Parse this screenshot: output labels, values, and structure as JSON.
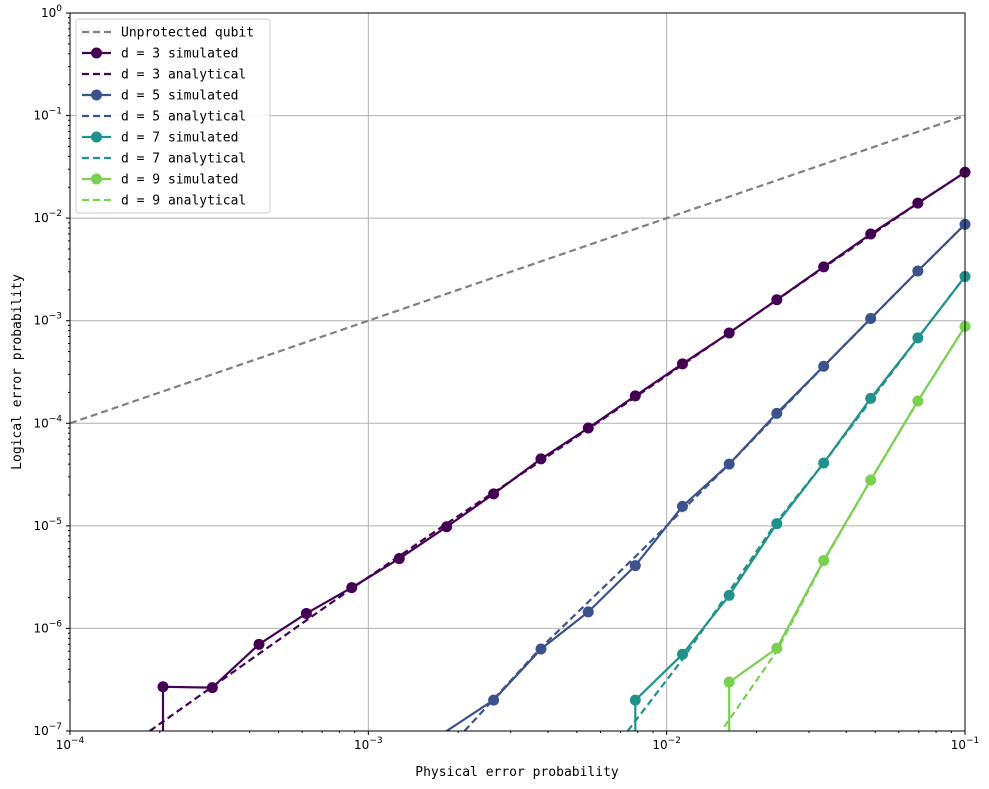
{
  "chart_data": {
    "type": "line",
    "title": "",
    "xlabel": "Physical error probability",
    "ylabel": "Logical error probability",
    "xscale": "log",
    "yscale": "log",
    "xlim": [
      0.0001,
      0.1
    ],
    "ylim": [
      1e-07,
      1
    ],
    "grid": true,
    "legend_position": "upper-left",
    "x_ticks": [
      {
        "base": "10",
        "exp": "−4"
      },
      {
        "base": "10",
        "exp": "−3"
      },
      {
        "base": "10",
        "exp": "−2"
      },
      {
        "base": "10",
        "exp": "−1"
      }
    ],
    "y_ticks": [
      {
        "base": "10",
        "exp": "−7"
      },
      {
        "base": "10",
        "exp": "−6"
      },
      {
        "base": "10",
        "exp": "−5"
      },
      {
        "base": "10",
        "exp": "−4"
      },
      {
        "base": "10",
        "exp": "−3"
      },
      {
        "base": "10",
        "exp": "−2"
      },
      {
        "base": "10",
        "exp": "−1"
      },
      {
        "base": "10",
        "exp": "0"
      }
    ],
    "series": [
      {
        "name": "Unprotected qubit",
        "style": "dashed",
        "markers": false,
        "color": "#808080",
        "x": [
          0.0001,
          0.1
        ],
        "y": [
          0.0001,
          0.1
        ]
      },
      {
        "name": "d = 3 simulated",
        "style": "solid",
        "markers": true,
        "color": "#440154",
        "x": [
          0.000205,
          0.000205,
          0.0003,
          0.00043,
          0.00062,
          0.00088,
          0.00127,
          0.00183,
          0.00263,
          0.00379,
          0.00546,
          0.00785,
          0.0113,
          0.0162,
          0.0234,
          0.0336,
          0.0483,
          0.0695,
          0.1
        ],
        "y": [
          1e-07,
          2.7e-07,
          2.65e-07,
          7e-07,
          1.4e-06,
          2.5e-06,
          4.8e-06,
          9.8e-06,
          2.05e-05,
          4.5e-05,
          9e-05,
          0.000185,
          0.00038,
          0.00076,
          0.0016,
          0.00335,
          0.007,
          0.014,
          0.028
        ]
      },
      {
        "name": "d = 3 analytical",
        "style": "dashed",
        "markers": false,
        "color": "#440154",
        "x": [
          0.000185,
          0.00062,
          0.00088,
          0.00183,
          0.00379,
          0.00785,
          0.0162,
          0.0336,
          0.0695,
          0.1
        ],
        "y": [
          1e-07,
          1.2e-06,
          2.45e-06,
          1.05e-05,
          4.3e-05,
          0.00018,
          0.00076,
          0.0033,
          0.014,
          0.028
        ]
      },
      {
        "name": "d = 5 simulated",
        "style": "solid",
        "markers": true,
        "color": "#3b528b",
        "x": [
          0.00183,
          0.00263,
          0.00379,
          0.00546,
          0.00785,
          0.0113,
          0.0162,
          0.0234,
          0.0336,
          0.0483,
          0.0695,
          0.1
        ],
        "y": [
          1e-07,
          2e-07,
          6.3e-07,
          1.45e-06,
          4.1e-06,
          1.55e-05,
          4e-05,
          0.000125,
          0.00036,
          0.00105,
          0.00305,
          0.0087
        ]
      },
      {
        "name": "d = 5 analytical",
        "style": "dashed",
        "markers": false,
        "color": "#3b528b",
        "x": [
          0.0021,
          0.00379,
          0.00785,
          0.0162,
          0.0336,
          0.0695,
          0.1
        ],
        "y": [
          1e-07,
          6.5e-07,
          5e-06,
          4e-05,
          0.00036,
          0.00305,
          0.0087
        ]
      },
      {
        "name": "d = 7 simulated",
        "style": "solid",
        "markers": true,
        "color": "#21918c",
        "x": [
          0.00785,
          0.00785,
          0.0113,
          0.0162,
          0.0234,
          0.0336,
          0.0483,
          0.0695,
          0.1
        ],
        "y": [
          1e-07,
          2e-07,
          5.6e-07,
          2.1e-06,
          1.05e-05,
          4.1e-05,
          0.000175,
          0.00068,
          0.0027
        ]
      },
      {
        "name": "d = 7 analytical",
        "style": "dashed",
        "markers": false,
        "color": "#21918c",
        "x": [
          0.0074,
          0.0113,
          0.0162,
          0.0234,
          0.0336,
          0.0695,
          0.1
        ],
        "y": [
          1e-07,
          5e-07,
          2.3e-06,
          1.1e-05,
          4.1e-05,
          0.00068,
          0.0027
        ]
      },
      {
        "name": "d = 9 simulated",
        "style": "solid",
        "markers": true,
        "color": "#7ad151",
        "x": [
          0.0162,
          0.0162,
          0.0234,
          0.0336,
          0.0483,
          0.0695,
          0.1
        ],
        "y": [
          1e-07,
          3e-07,
          6.4e-07,
          4.6e-06,
          2.8e-05,
          0.000165,
          0.00088
        ]
      },
      {
        "name": "d = 9 analytical",
        "style": "dashed",
        "markers": false,
        "color": "#7ad151",
        "x": [
          0.0156,
          0.0234,
          0.0336,
          0.0483,
          0.0695,
          0.1
        ],
        "y": [
          1.1e-07,
          6e-07,
          4.5e-06,
          2.8e-05,
          0.000165,
          0.00088
        ]
      }
    ]
  }
}
